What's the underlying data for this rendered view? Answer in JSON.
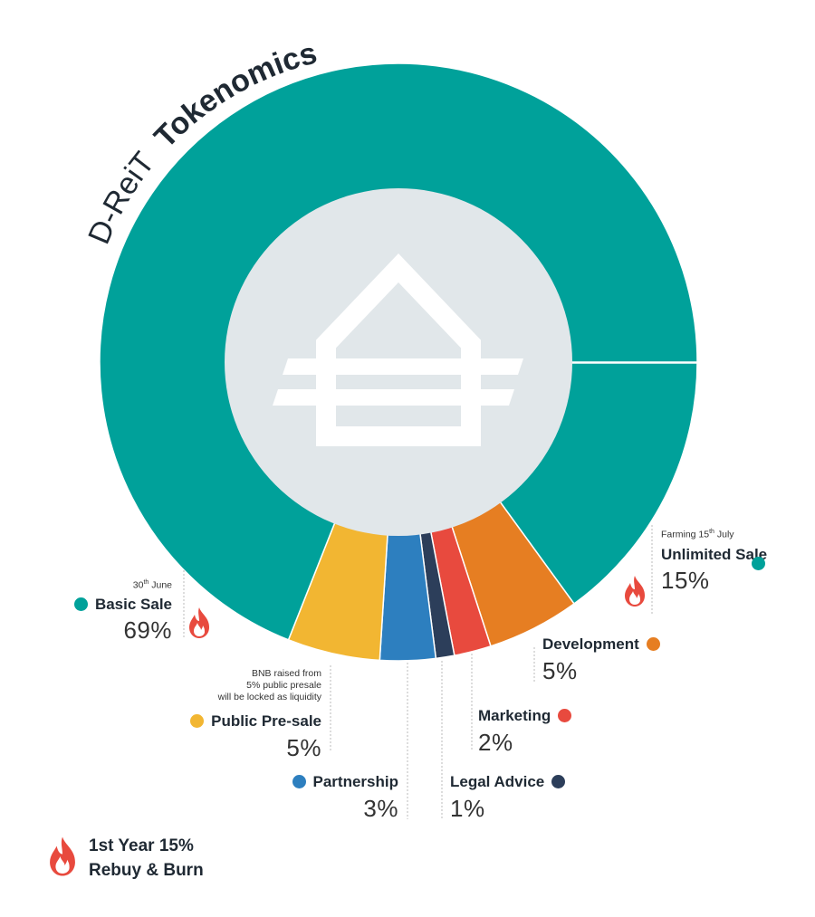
{
  "title_light": "D-ReiT",
  "title_bold": "Tokenomics",
  "footer": {
    "line1": "1st Year 15%",
    "line2": "Rebuy & Burn"
  },
  "chart_data": {
    "type": "pie",
    "title": "D-ReiT Tokenomics",
    "slices": [
      {
        "label": "Basic Sale",
        "value": 69,
        "display": "69%",
        "color": "#00a19a",
        "note_pre": "30",
        "note_sup": "th",
        "note_post": " June",
        "burn": true
      },
      {
        "label": "Public Pre-sale",
        "value": 5,
        "display": "5%",
        "color": "#f2b632",
        "note_lines": [
          "BNB raised from",
          "5% public presale",
          "will be locked as liquidity"
        ]
      },
      {
        "label": "Partnership",
        "value": 3,
        "display": "3%",
        "color": "#2d7fbf"
      },
      {
        "label": "Legal Advice",
        "value": 1,
        "display": "1%",
        "color": "#2c3e5a"
      },
      {
        "label": "Marketing",
        "value": 2,
        "display": "2%",
        "color": "#e84a3e"
      },
      {
        "label": "Development",
        "value": 5,
        "display": "5%",
        "color": "#e67e22"
      },
      {
        "label": "Unlimited Sale",
        "value": 15,
        "display": "15%",
        "color": "#00a19a",
        "note_pre": "Farming 15",
        "note_sup": "th",
        "note_post": " July",
        "burn": true
      }
    ],
    "legend": "labels around the ring"
  },
  "colors": {
    "center": "#e1e7ea",
    "teal": "#00a19a",
    "flame": "#e84a3e"
  },
  "center_icon": "house-logo-icon"
}
